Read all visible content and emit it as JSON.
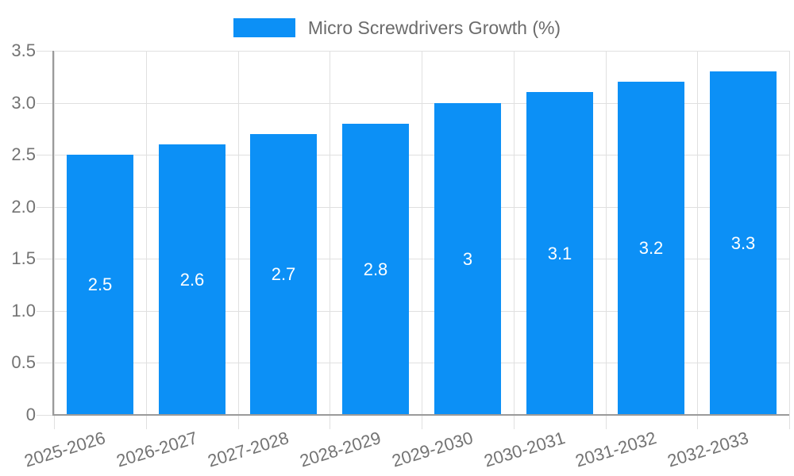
{
  "chart_data": {
    "type": "bar",
    "legend": {
      "label": "Micro Screwdrivers Growth (%)",
      "position": "top"
    },
    "categories": [
      "2025-2026",
      "2026-2027",
      "2027-2028",
      "2028-2029",
      "2029-2030",
      "2030-2031",
      "2031-2032",
      "2032-2033"
    ],
    "values": [
      2.5,
      2.6,
      2.7,
      2.8,
      3,
      3.1,
      3.2,
      3.3
    ],
    "value_labels": [
      "2.5",
      "2.6",
      "2.7",
      "2.8",
      "3",
      "3.1",
      "3.2",
      "3.3"
    ],
    "xlabel": "",
    "ylabel": "",
    "ylim": [
      0,
      3.5
    ],
    "yticks": [
      3.5,
      3.0,
      2.5,
      2.0,
      1.5,
      1.0,
      0.5,
      0
    ],
    "ytick_labels": [
      "3.5",
      "3.0",
      "2.5",
      "2.0",
      "1.5",
      "1.0",
      "0.5",
      "0"
    ],
    "grid": true,
    "legend_position": "top",
    "colors": {
      "bar": "#0c90f6",
      "grid": "#e0e0e0",
      "axis": "#9a9a9a",
      "tick_text": "#737373",
      "legend_text": "#6b6b6b",
      "bar_label_text": "#ffffff",
      "background": "#ffffff"
    }
  }
}
